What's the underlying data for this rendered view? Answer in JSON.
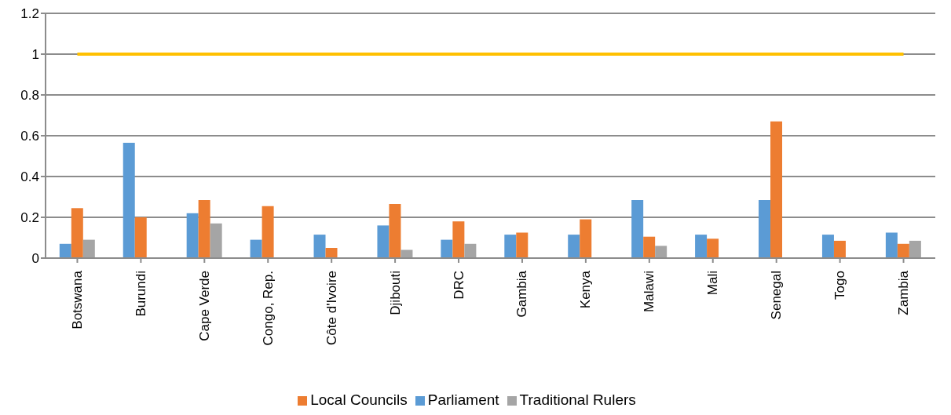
{
  "chart_data": {
    "type": "bar",
    "categories": [
      "Botswana",
      "Burundi",
      "Cape Verde",
      "Congo, Rep.",
      "Côte d'Ivoire",
      "Djibouti",
      "DRC",
      "Gambia",
      "Kenya",
      "Malawi",
      "Mali",
      "Senegal",
      "Togo",
      "Zambia"
    ],
    "series": [
      {
        "name": "Parliament",
        "color": "#5b9bd5",
        "values": [
          0.07,
          0.565,
          0.22,
          0.09,
          0.115,
          0.16,
          0.09,
          0.115,
          0.115,
          0.285,
          0.115,
          0.285,
          0.115,
          0.125
        ]
      },
      {
        "name": "Local Councils",
        "color": "#ed7d31",
        "values": [
          0.245,
          0.2,
          0.285,
          0.255,
          0.05,
          0.265,
          0.18,
          0.125,
          0.19,
          0.105,
          0.095,
          0.67,
          0.085,
          0.07
        ]
      },
      {
        "name": "Traditional Rulers",
        "color": "#a5a5a5",
        "values": [
          0.09,
          null,
          0.17,
          null,
          null,
          0.04,
          0.07,
          null,
          null,
          0.06,
          null,
          null,
          null,
          0.085
        ]
      },
      {
        "type": "line",
        "color": "#ffc000",
        "values": [
          1,
          1,
          1,
          1,
          1,
          1,
          1,
          1,
          1,
          1,
          1,
          1,
          1,
          1
        ]
      }
    ],
    "ylim": [
      0,
      1.2
    ],
    "yticks": [
      0,
      0.2,
      0.4,
      0.6,
      0.8,
      1,
      1.2
    ],
    "grid": "y",
    "legend": "bottom"
  }
}
